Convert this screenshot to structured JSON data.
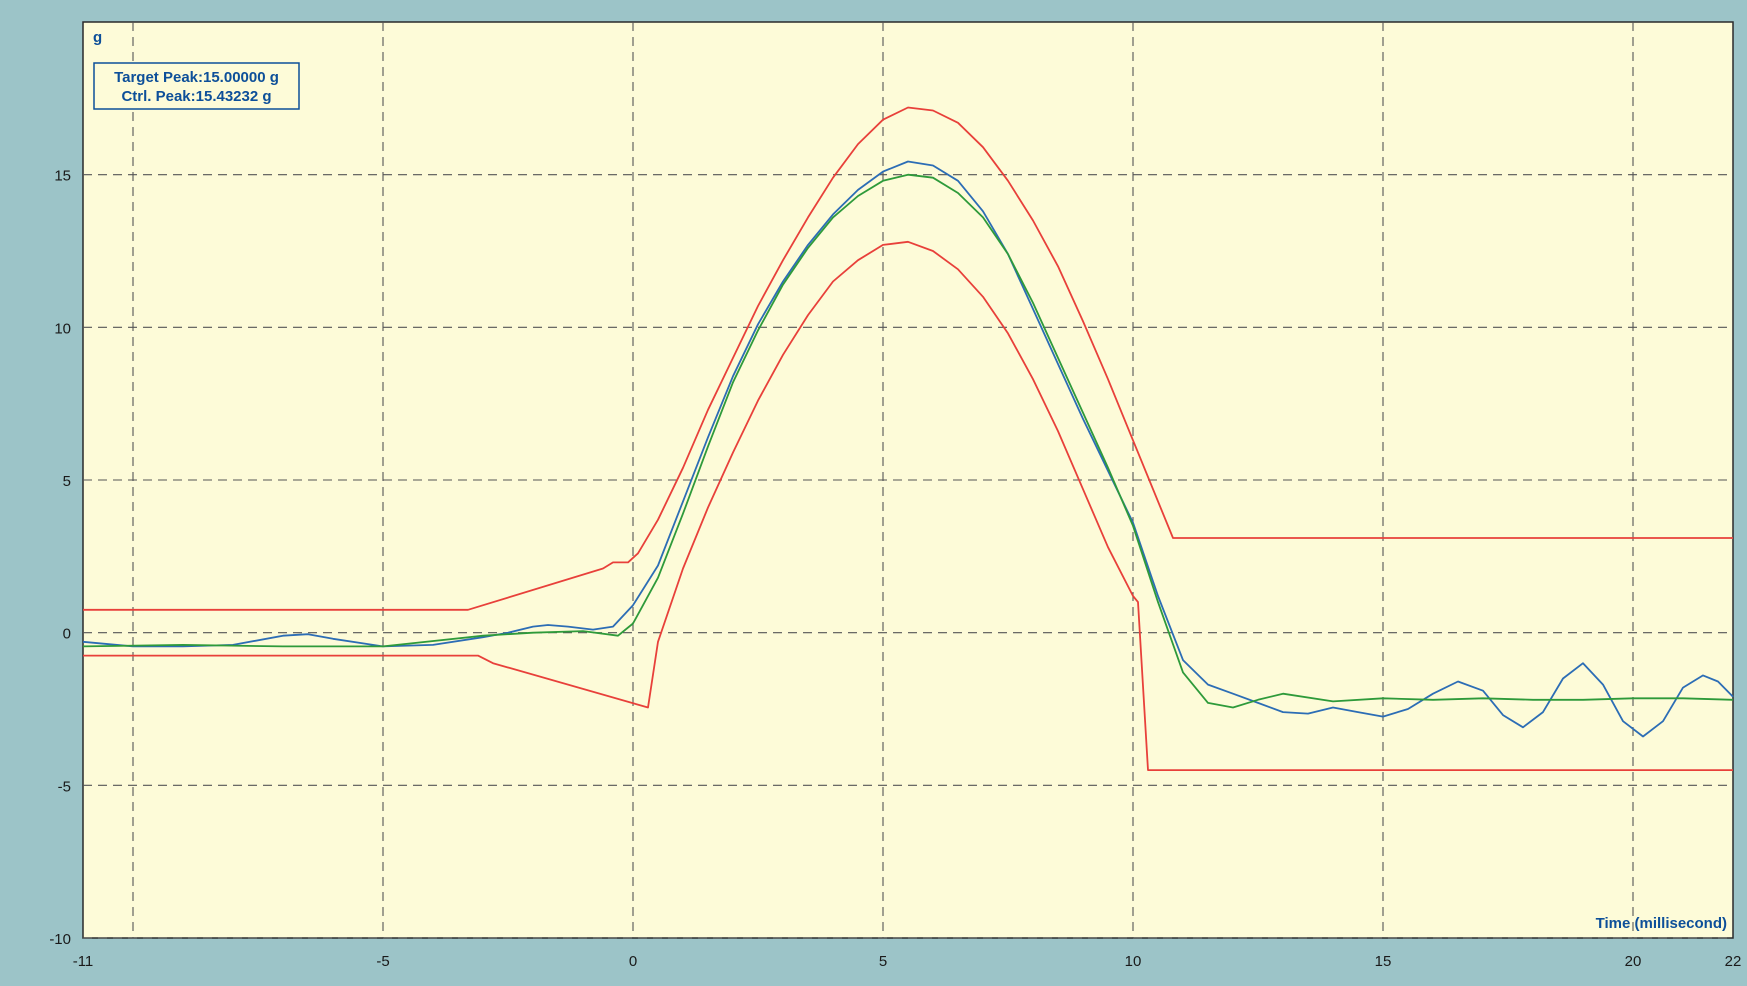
{
  "chart_data": {
    "type": "line",
    "xlabel": "Time (millisecond)",
    "ylabel": "g",
    "xlim": [
      -11,
      22
    ],
    "ylim": [
      -10,
      20
    ],
    "x_ticks": [
      -11,
      -5,
      0,
      5,
      10,
      15,
      20,
      22
    ],
    "y_ticks": [
      -10,
      -5,
      0,
      5,
      10,
      15
    ],
    "x_grid": [
      -10,
      -5,
      0,
      5,
      10,
      15,
      20
    ],
    "y_grid": [
      -10,
      -5,
      0,
      5,
      10,
      15
    ],
    "grid": true,
    "annotation": {
      "target_peak": "Target Peak:15.00000 g",
      "ctrl_peak": "Ctrl. Peak:15.43232 g"
    },
    "colors": {
      "plot_bg": "#fdfbd8",
      "frame_bg": "#9cc4c8",
      "grid": "#555555",
      "tolerance": "#e8403a",
      "control": "#2c6db5",
      "reference": "#2e9a3a",
      "label": "#0d4f99"
    },
    "series": [
      {
        "key": "upper_tolerance",
        "color": "#e8403a",
        "points": [
          [
            -11,
            0.75
          ],
          [
            -3.3,
            0.75
          ],
          [
            -0.6,
            2.1
          ],
          [
            -0.4,
            2.3
          ],
          [
            -0.1,
            2.3
          ],
          [
            0.1,
            2.6
          ],
          [
            0.5,
            3.7
          ],
          [
            1.0,
            5.4
          ],
          [
            1.5,
            7.3
          ],
          [
            2.0,
            9.0
          ],
          [
            2.5,
            10.7
          ],
          [
            3.0,
            12.2
          ],
          [
            3.5,
            13.6
          ],
          [
            4.0,
            14.9
          ],
          [
            4.5,
            16.0
          ],
          [
            5.0,
            16.8
          ],
          [
            5.5,
            17.2
          ],
          [
            6.0,
            17.1
          ],
          [
            6.5,
            16.7
          ],
          [
            7.0,
            15.9
          ],
          [
            7.5,
            14.8
          ],
          [
            8.0,
            13.5
          ],
          [
            8.5,
            12.0
          ],
          [
            9.0,
            10.2
          ],
          [
            9.5,
            8.3
          ],
          [
            10.0,
            6.3
          ],
          [
            10.8,
            3.1
          ],
          [
            22,
            3.1
          ]
        ]
      },
      {
        "key": "lower_tolerance",
        "color": "#e8403a",
        "points": [
          [
            -11,
            -0.75
          ],
          [
            -3.1,
            -0.75
          ],
          [
            -2.8,
            -1.0
          ],
          [
            0.3,
            -2.45
          ],
          [
            0.5,
            -0.3
          ],
          [
            1.0,
            2.1
          ],
          [
            1.5,
            4.1
          ],
          [
            2.0,
            5.9
          ],
          [
            2.5,
            7.6
          ],
          [
            3.0,
            9.1
          ],
          [
            3.5,
            10.4
          ],
          [
            4.0,
            11.5
          ],
          [
            4.5,
            12.2
          ],
          [
            5.0,
            12.7
          ],
          [
            5.5,
            12.8
          ],
          [
            6.0,
            12.5
          ],
          [
            6.5,
            11.9
          ],
          [
            7.0,
            11.0
          ],
          [
            7.5,
            9.8
          ],
          [
            8.0,
            8.3
          ],
          [
            8.5,
            6.6
          ],
          [
            9.0,
            4.7
          ],
          [
            9.5,
            2.8
          ],
          [
            10.0,
            1.2
          ],
          [
            10.1,
            1.0
          ],
          [
            10.3,
            -4.5
          ],
          [
            22,
            -4.5
          ]
        ]
      },
      {
        "key": "control_signal",
        "color": "#2c6db5",
        "points": [
          [
            -11,
            -0.3
          ],
          [
            -10,
            -0.45
          ],
          [
            -9,
            -0.45
          ],
          [
            -8,
            -0.4
          ],
          [
            -7,
            -0.1
          ],
          [
            -6.5,
            -0.05
          ],
          [
            -6,
            -0.2
          ],
          [
            -5,
            -0.45
          ],
          [
            -4,
            -0.4
          ],
          [
            -3,
            -0.15
          ],
          [
            -2.5,
            0.0
          ],
          [
            -2,
            0.2
          ],
          [
            -1.7,
            0.25
          ],
          [
            -1.3,
            0.2
          ],
          [
            -0.8,
            0.1
          ],
          [
            -0.4,
            0.2
          ],
          [
            0,
            0.9
          ],
          [
            0.5,
            2.2
          ],
          [
            1.0,
            4.3
          ],
          [
            1.5,
            6.4
          ],
          [
            2.0,
            8.4
          ],
          [
            2.5,
            10.1
          ],
          [
            3.0,
            11.5
          ],
          [
            3.5,
            12.7
          ],
          [
            4.0,
            13.7
          ],
          [
            4.5,
            14.5
          ],
          [
            5.0,
            15.1
          ],
          [
            5.5,
            15.43
          ],
          [
            6.0,
            15.3
          ],
          [
            6.5,
            14.8
          ],
          [
            7.0,
            13.8
          ],
          [
            7.5,
            12.4
          ],
          [
            8.0,
            10.6
          ],
          [
            8.5,
            8.8
          ],
          [
            9.0,
            7.0
          ],
          [
            9.5,
            5.3
          ],
          [
            10.0,
            3.6
          ],
          [
            10.5,
            1.2
          ],
          [
            11.0,
            -0.9
          ],
          [
            11.5,
            -1.7
          ],
          [
            12.0,
            -2.0
          ],
          [
            12.5,
            -2.3
          ],
          [
            13.0,
            -2.6
          ],
          [
            13.5,
            -2.65
          ],
          [
            14.0,
            -2.45
          ],
          [
            14.5,
            -2.6
          ],
          [
            15.0,
            -2.75
          ],
          [
            15.5,
            -2.5
          ],
          [
            16.0,
            -2.0
          ],
          [
            16.5,
            -1.6
          ],
          [
            17.0,
            -1.9
          ],
          [
            17.4,
            -2.7
          ],
          [
            17.8,
            -3.1
          ],
          [
            18.2,
            -2.6
          ],
          [
            18.6,
            -1.5
          ],
          [
            19.0,
            -1.0
          ],
          [
            19.4,
            -1.7
          ],
          [
            19.8,
            -2.9
          ],
          [
            20.2,
            -3.4
          ],
          [
            20.6,
            -2.9
          ],
          [
            21.0,
            -1.8
          ],
          [
            21.4,
            -1.4
          ],
          [
            21.7,
            -1.6
          ],
          [
            22,
            -2.1
          ]
        ]
      },
      {
        "key": "reference_pulse",
        "color": "#2e9a3a",
        "points": [
          [
            -11,
            -0.45
          ],
          [
            -9,
            -0.4
          ],
          [
            -7,
            -0.45
          ],
          [
            -5,
            -0.45
          ],
          [
            -3,
            -0.1
          ],
          [
            -2,
            0.0
          ],
          [
            -1,
            0.05
          ],
          [
            -0.3,
            -0.1
          ],
          [
            0,
            0.3
          ],
          [
            0.5,
            1.8
          ],
          [
            1.0,
            3.9
          ],
          [
            1.5,
            6.1
          ],
          [
            2.0,
            8.2
          ],
          [
            2.5,
            9.9
          ],
          [
            3.0,
            11.4
          ],
          [
            3.5,
            12.6
          ],
          [
            4.0,
            13.6
          ],
          [
            4.5,
            14.3
          ],
          [
            5.0,
            14.8
          ],
          [
            5.5,
            15.0
          ],
          [
            6.0,
            14.9
          ],
          [
            6.5,
            14.4
          ],
          [
            7.0,
            13.6
          ],
          [
            7.5,
            12.4
          ],
          [
            8.0,
            10.8
          ],
          [
            8.5,
            9.0
          ],
          [
            9.0,
            7.2
          ],
          [
            9.5,
            5.4
          ],
          [
            10.0,
            3.5
          ],
          [
            10.5,
            1.0
          ],
          [
            11.0,
            -1.3
          ],
          [
            11.5,
            -2.3
          ],
          [
            12.0,
            -2.45
          ],
          [
            12.5,
            -2.2
          ],
          [
            13.0,
            -2.0
          ],
          [
            14.0,
            -2.25
          ],
          [
            15.0,
            -2.15
          ],
          [
            16.0,
            -2.2
          ],
          [
            17.0,
            -2.15
          ],
          [
            18.0,
            -2.2
          ],
          [
            19.0,
            -2.2
          ],
          [
            20.0,
            -2.15
          ],
          [
            21.0,
            -2.15
          ],
          [
            22,
            -2.2
          ]
        ]
      }
    ]
  }
}
